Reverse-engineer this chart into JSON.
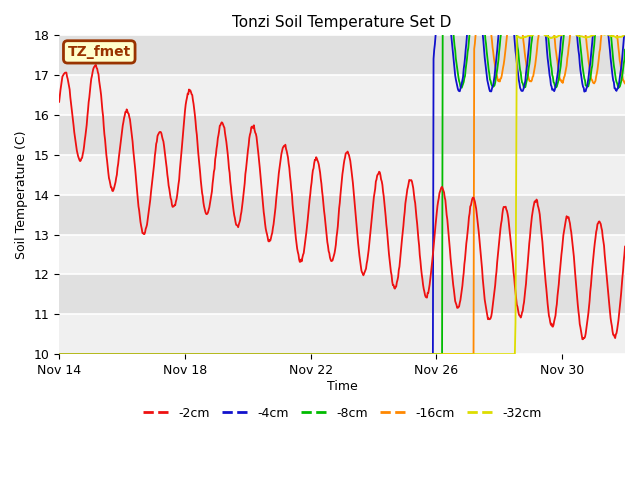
{
  "title": "Tonzi Soil Temperature Set D",
  "ylabel": "Soil Temperature (C)",
  "xlabel": "Time",
  "ylim": [
    10.0,
    18.0
  ],
  "yticks": [
    10.0,
    11.0,
    12.0,
    13.0,
    14.0,
    15.0,
    16.0,
    17.0,
    18.0
  ],
  "xtick_labels": [
    "Nov 14",
    "Nov 18",
    "Nov 22",
    "Nov 26",
    "Nov 30"
  ],
  "xtick_positions": [
    0,
    4,
    8,
    12,
    16
  ],
  "n_days": 18,
  "label_text": "TZ_fmet",
  "label_bg": "#ffffcc",
  "label_border": "#993300",
  "label_text_color": "#993300",
  "background_color": "#e8e8e8",
  "band_color_light": "#f0f0f0",
  "band_color_dark": "#e0e0e0",
  "colors": {
    "-2cm": "#ee1111",
    "-4cm": "#1111cc",
    "-8cm": "#00bb00",
    "-16cm": "#ff8800",
    "-32cm": "#dddd00"
  },
  "legend_labels": [
    "-2cm",
    "-4cm",
    "-8cm",
    "-16cm",
    "-32cm"
  ]
}
